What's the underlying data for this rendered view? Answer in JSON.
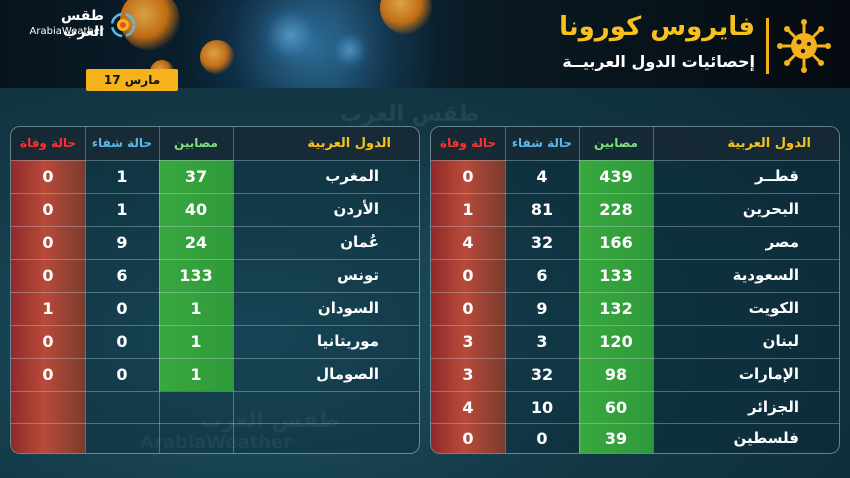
{
  "header": {
    "title": "فايروس كورونا",
    "subtitle": "إحصائيات الدول العربيــة",
    "date": "17 مارس",
    "logo_ar": "طقس العرب",
    "logo_en": "ArabiaWeather"
  },
  "watermark": {
    "ar": "طقس العرب",
    "en": "ArabiaWeather"
  },
  "columns": {
    "country": "الدول العربية",
    "infected": "مصابين",
    "recovered": "حالة شفاء",
    "deaths": "حالة وفاة"
  },
  "right_table": {
    "rows": [
      {
        "country": "قطــر",
        "infected": "439",
        "recovered": "4",
        "deaths": "0"
      },
      {
        "country": "البحرين",
        "infected": "228",
        "recovered": "81",
        "deaths": "1"
      },
      {
        "country": "مصر",
        "infected": "166",
        "recovered": "32",
        "deaths": "4"
      },
      {
        "country": "السعودية",
        "infected": "133",
        "recovered": "6",
        "deaths": "0"
      },
      {
        "country": "الكويت",
        "infected": "132",
        "recovered": "9",
        "deaths": "0"
      },
      {
        "country": "لبنان",
        "infected": "120",
        "recovered": "3",
        "deaths": "3"
      },
      {
        "country": "الإمارات",
        "infected": "98",
        "recovered": "32",
        "deaths": "3"
      },
      {
        "country": "الجزائر",
        "infected": "60",
        "recovered": "10",
        "deaths": "4"
      },
      {
        "country": "فلسطين",
        "infected": "39",
        "recovered": "0",
        "deaths": "0"
      }
    ]
  },
  "left_table": {
    "rows": [
      {
        "country": "المغرب",
        "infected": "37",
        "recovered": "1",
        "deaths": "0"
      },
      {
        "country": "الأردن",
        "infected": "40",
        "recovered": "1",
        "deaths": "0"
      },
      {
        "country": "عُمان",
        "infected": "24",
        "recovered": "9",
        "deaths": "0"
      },
      {
        "country": "تونس",
        "infected": "133",
        "recovered": "6",
        "deaths": "0"
      },
      {
        "country": "السودان",
        "infected": "1",
        "recovered": "0",
        "deaths": "1"
      },
      {
        "country": "موريتانيا",
        "infected": "1",
        "recovered": "0",
        "deaths": "0"
      },
      {
        "country": "الصومال",
        "infected": "1",
        "recovered": "0",
        "deaths": "0"
      },
      {
        "country": "",
        "infected": "",
        "recovered": "",
        "deaths": ""
      },
      {
        "country": "",
        "infected": "",
        "recovered": "",
        "deaths": ""
      }
    ]
  },
  "colors": {
    "accent": "#f6b21b",
    "infected": "#3aa73f",
    "deaths": "#a8403a",
    "recovered_header": "#5ab8ea",
    "deaths_header": "#ff3030"
  },
  "icons": [
    "arabiaweather-logo-icon",
    "coronavirus-sun-icon"
  ]
}
